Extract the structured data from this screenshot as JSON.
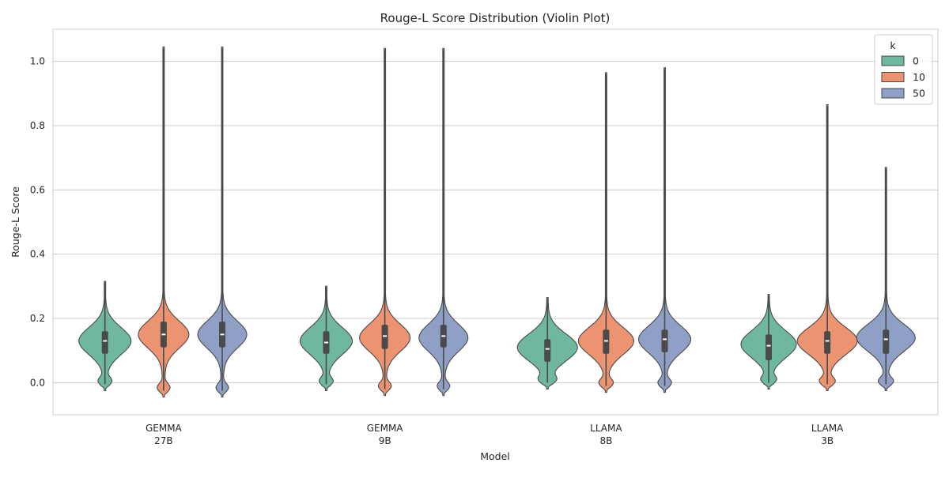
{
  "chart_data": {
    "type": "violin",
    "title": "Rouge-L Score Distribution (Violin Plot)",
    "xlabel": "Model",
    "ylabel": "Rouge-L Score",
    "ylim": [
      -0.1,
      1.1
    ],
    "yticks": [
      0.0,
      0.2,
      0.4,
      0.6,
      0.8,
      1.0
    ],
    "ytick_labels": [
      "0.0",
      "0.2",
      "0.4",
      "0.6",
      "0.8",
      "1.0"
    ],
    "grid": "horizontal",
    "legend": {
      "title": "k",
      "position": "top-right"
    },
    "categories": [
      {
        "line1": "GEMMA",
        "line2": "27B"
      },
      {
        "line1": "GEMMA",
        "line2": "9B"
      },
      {
        "line1": "LLAMA",
        "line2": "8B"
      },
      {
        "line1": "LLAMA",
        "line2": "3B"
      }
    ],
    "series": [
      {
        "name": "0",
        "color": "#6fb79d",
        "stats": [
          {
            "min": -0.025,
            "q1": 0.09,
            "median": 0.13,
            "q3": 0.16,
            "max": 0.315,
            "mode": 0.13,
            "half_width": 33
          },
          {
            "min": -0.025,
            "q1": 0.09,
            "median": 0.125,
            "q3": 0.16,
            "max": 0.3,
            "mode": 0.13,
            "half_width": 33
          },
          {
            "min": -0.02,
            "q1": 0.065,
            "median": 0.105,
            "q3": 0.135,
            "max": 0.265,
            "mode": 0.11,
            "half_width": 38
          },
          {
            "min": -0.02,
            "q1": 0.07,
            "median": 0.115,
            "q3": 0.15,
            "max": 0.275,
            "mode": 0.12,
            "half_width": 35
          }
        ]
      },
      {
        "name": "10",
        "color": "#ec9371",
        "stats": [
          {
            "min": -0.045,
            "q1": 0.11,
            "median": 0.15,
            "q3": 0.19,
            "max": 1.045,
            "mode": 0.15,
            "half_width": 32
          },
          {
            "min": -0.04,
            "q1": 0.105,
            "median": 0.145,
            "q3": 0.18,
            "max": 1.04,
            "mode": 0.14,
            "half_width": 32
          },
          {
            "min": -0.03,
            "q1": 0.09,
            "median": 0.13,
            "q3": 0.165,
            "max": 0.965,
            "mode": 0.13,
            "half_width": 35
          },
          {
            "min": -0.025,
            "q1": 0.09,
            "median": 0.13,
            "q3": 0.16,
            "max": 0.865,
            "mode": 0.13,
            "half_width": 38
          }
        ]
      },
      {
        "name": "50",
        "color": "#909fc5",
        "stats": [
          {
            "min": -0.045,
            "q1": 0.11,
            "median": 0.15,
            "q3": 0.19,
            "max": 1.045,
            "mode": 0.15,
            "half_width": 31
          },
          {
            "min": -0.04,
            "q1": 0.11,
            "median": 0.145,
            "q3": 0.18,
            "max": 1.04,
            "mode": 0.14,
            "half_width": 31
          },
          {
            "min": -0.03,
            "q1": 0.095,
            "median": 0.135,
            "q3": 0.165,
            "max": 0.98,
            "mode": 0.135,
            "half_width": 33
          },
          {
            "min": -0.025,
            "q1": 0.09,
            "median": 0.135,
            "q3": 0.165,
            "max": 0.67,
            "mode": 0.14,
            "half_width": 37
          }
        ]
      }
    ]
  }
}
